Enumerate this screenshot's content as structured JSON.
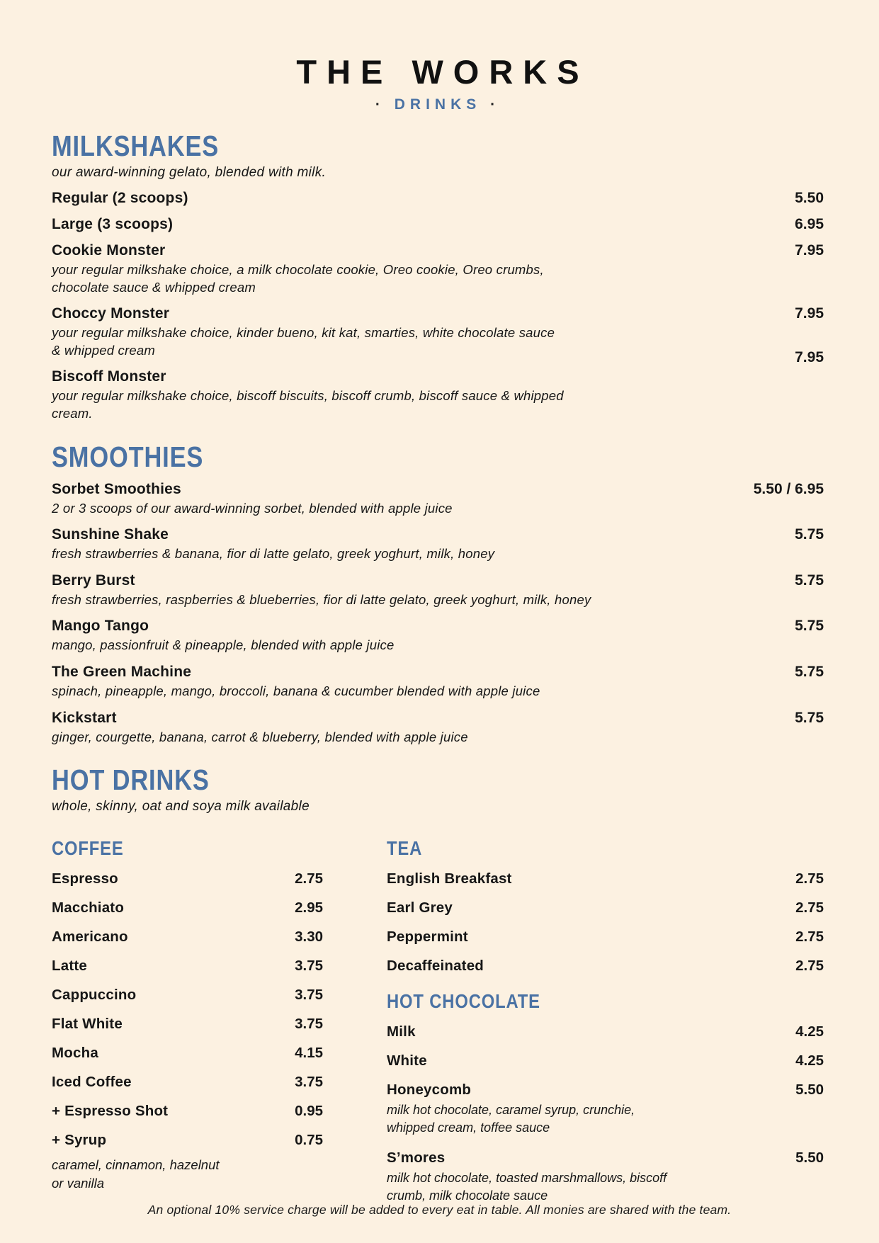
{
  "page": {
    "title": "THE WORKS",
    "subtitle": "DRINKS",
    "footer_note": "An optional 10% service charge will be added to every eat in table. All monies are shared with the team."
  },
  "colors": {
    "background": "#fcf1e1",
    "accent": "#4a72a4",
    "ink": "#161616"
  },
  "milkshakes": {
    "title": "MILKSHAKES",
    "intro": "our award-winning gelato, blended with milk.",
    "items": [
      {
        "name": "Regular (2 scoops)",
        "price": "5.50"
      },
      {
        "name": "Large (3 scoops)",
        "price": "6.95"
      },
      {
        "name": "Cookie Monster",
        "price": "7.95",
        "desc": "your regular milkshake choice, a milk chocolate cookie, Oreo cookie, Oreo crumbs,\nchocolate sauce & whipped cream"
      },
      {
        "name": "Choccy Monster",
        "price": "7.95",
        "desc": "your regular milkshake choice, kinder bueno, kit kat, smarties, white chocolate sauce\n& whipped cream"
      },
      {
        "name": "Biscoff Monster",
        "price": "7.95",
        "desc": "your regular milkshake choice, biscoff biscuits, biscoff crumb, biscoff sauce & whipped\ncream."
      }
    ]
  },
  "smoothies": {
    "title": "SMOOTHIES",
    "items": [
      {
        "name": "Sorbet Smoothies",
        "price": "5.50 / 6.95",
        "desc": "2 or 3 scoops of our award-winning sorbet, blended with apple juice"
      },
      {
        "name": "Sunshine Shake",
        "price": "5.75",
        "desc": "fresh strawberries & banana, fior di latte gelato, greek yoghurt, milk, honey"
      },
      {
        "name": "Berry Burst",
        "price": "5.75",
        "desc": "fresh strawberries, raspberries & blueberries, fior di latte gelato, greek yoghurt, milk, honey"
      },
      {
        "name": "Mango Tango",
        "price": "5.75",
        "desc": "mango, passionfruit & pineapple, blended with apple juice"
      },
      {
        "name": "The Green Machine",
        "price": "5.75",
        "desc": "spinach, pineapple, mango, broccoli, banana & cucumber blended with apple juice"
      },
      {
        "name": "Kickstart",
        "price": "5.75",
        "desc": "ginger, courgette, banana, carrot & blueberry, blended with apple juice"
      }
    ]
  },
  "hot_drinks": {
    "title": "HOT DRINKS",
    "intro": "whole, skinny, oat and soya milk available",
    "coffee": {
      "title": "COFFEE",
      "items": [
        {
          "name": "Espresso",
          "price": "2.75"
        },
        {
          "name": "Macchiato",
          "price": "2.95"
        },
        {
          "name": "Americano",
          "price": "3.30"
        },
        {
          "name": "Latte",
          "price": "3.75"
        },
        {
          "name": "Cappuccino",
          "price": "3.75"
        },
        {
          "name": "Flat White",
          "price": "3.75"
        },
        {
          "name": "Mocha",
          "price": "4.15"
        },
        {
          "name": "Iced Coffee",
          "price": "3.75"
        },
        {
          "name": "+ Espresso Shot",
          "price": "0.95"
        },
        {
          "name": "+ Syrup",
          "price": "0.75"
        }
      ],
      "syrup_note": "caramel, cinnamon, hazelnut\nor vanilla"
    },
    "tea": {
      "title": "TEA",
      "items": [
        {
          "name": "English Breakfast",
          "price": "2.75"
        },
        {
          "name": "Earl Grey",
          "price": "2.75"
        },
        {
          "name": "Peppermint",
          "price": "2.75"
        },
        {
          "name": "Decaffeinated",
          "price": "2.75"
        }
      ]
    },
    "hot_chocolate": {
      "title": "HOT CHOCOLATE",
      "items": [
        {
          "name": "Milk",
          "price": "4.25"
        },
        {
          "name": "White",
          "price": "4.25"
        },
        {
          "name": "Honeycomb",
          "price": "5.50",
          "desc": "milk hot chocolate, caramel syrup, crunchie,\nwhipped cream, toffee sauce"
        },
        {
          "name": "S’mores",
          "price": "5.50",
          "desc": "milk hot chocolate, toasted marshmallows, biscoff\ncrumb, milk chocolate sauce"
        }
      ]
    }
  }
}
